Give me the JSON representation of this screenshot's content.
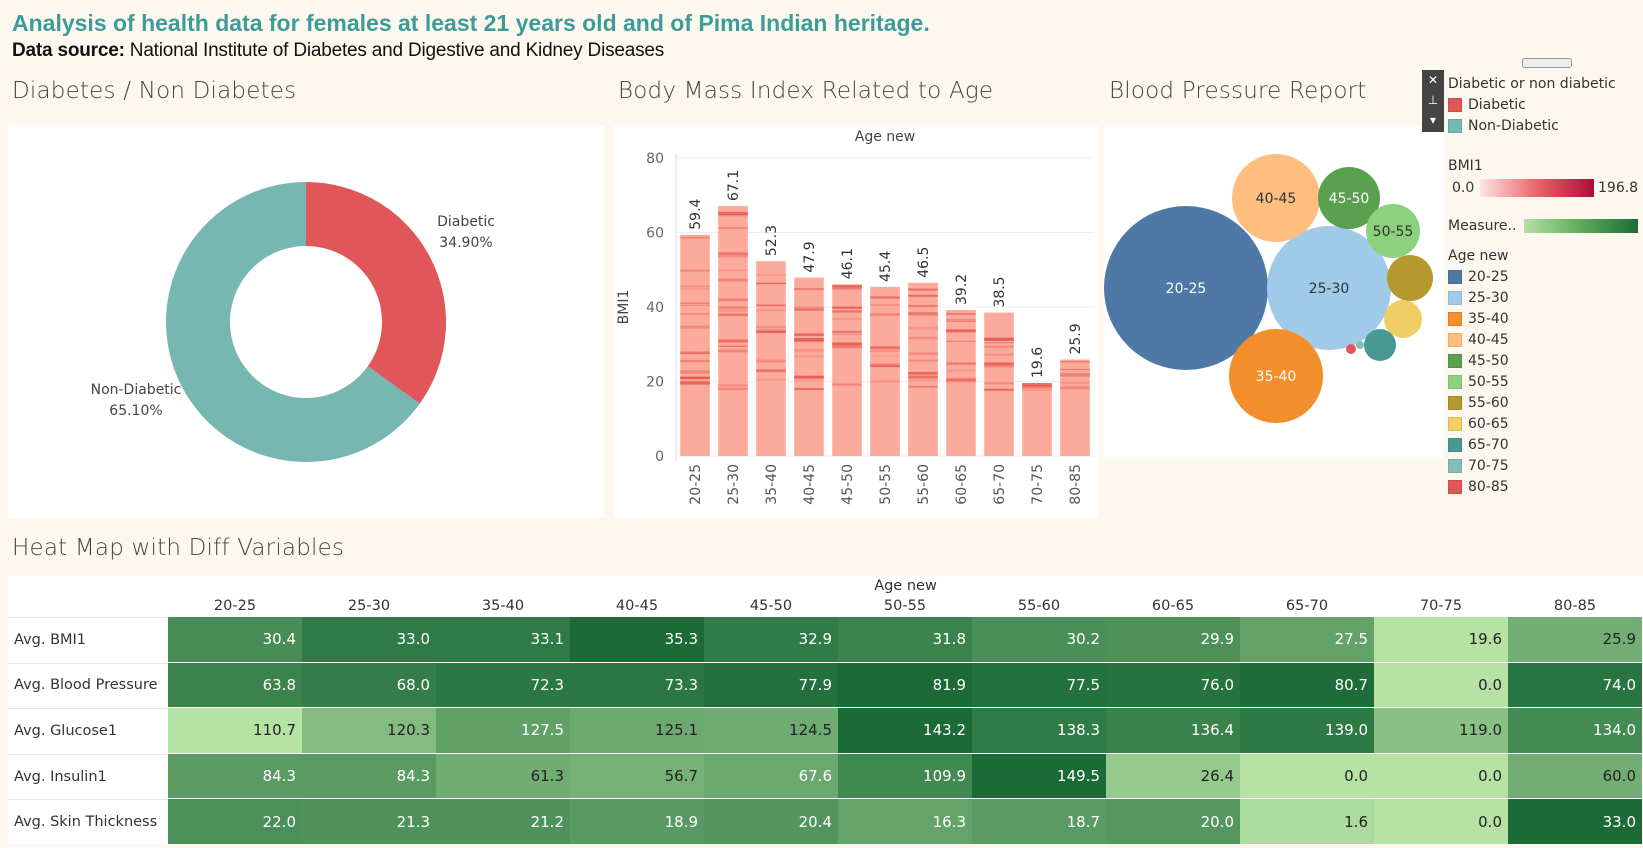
{
  "title": "Analysis of health data for females at least 21 years old and of Pima Indian heritage.",
  "source_label": "Data source:",
  "source_text": "National Institute of Diabetes and Digestive and Kidney Diseases",
  "sections": {
    "donut": "Diabetes / Non Diabetes",
    "bmi": "Body Mass Index Related to Age",
    "bp": "Blood Pressure Report",
    "heat": "Heat Map with Diff Variables"
  },
  "legend": {
    "diabetic_title": "Diabetic or non diabetic",
    "diabetic_items": [
      {
        "label": "Diabetic",
        "color": "#e15759"
      },
      {
        "label": "Non-Diabetic",
        "color": "#76b7b2"
      }
    ],
    "bmi_title": "BMI1",
    "bmi_min": "0.0",
    "bmi_max": "196.8",
    "measure_title": "Measure..",
    "age_title": "Age new",
    "age_items": [
      {
        "label": "20-25",
        "color": "#4e79a7"
      },
      {
        "label": "25-30",
        "color": "#a0cbe8"
      },
      {
        "label": "35-40",
        "color": "#f28e2b"
      },
      {
        "label": "40-45",
        "color": "#ffbe7d"
      },
      {
        "label": "45-50",
        "color": "#59a14f"
      },
      {
        "label": "50-55",
        "color": "#8cd17d"
      },
      {
        "label": "55-60",
        "color": "#b6992d"
      },
      {
        "label": "60-65",
        "color": "#f1ce63"
      },
      {
        "label": "65-70",
        "color": "#499894"
      },
      {
        "label": "70-75",
        "color": "#86bcb6"
      },
      {
        "label": "80-85",
        "color": "#e15759"
      }
    ],
    "controls": [
      "✕",
      "⊥",
      "▾"
    ]
  },
  "chart_data": [
    {
      "type": "pie",
      "title": "Diabetes / Non Diabetes",
      "categories": [
        "Diabetic",
        "Non-Diabetic"
      ],
      "values": [
        34.9,
        65.1
      ],
      "labels": [
        "34.90%",
        "65.10%"
      ],
      "colors": [
        "#e15759",
        "#76b7b2"
      ]
    },
    {
      "type": "bar",
      "title": "Body Mass Index Related to Age",
      "xlabel": "Age new",
      "ylabel": "BMI1",
      "ylim": [
        0,
        80
      ],
      "yticks": [
        0,
        20,
        40,
        60,
        80
      ],
      "categories": [
        "20-25",
        "25-30",
        "35-40",
        "40-45",
        "45-50",
        "50-55",
        "55-60",
        "60-65",
        "65-70",
        "70-75",
        "80-85"
      ],
      "values": [
        59.4,
        67.1,
        52.3,
        47.9,
        46.1,
        45.4,
        46.5,
        39.2,
        38.5,
        19.6,
        25.9
      ],
      "value_labels": [
        "59.4",
        "67.1",
        "52.3",
        "47.9",
        "46.1",
        "45.4",
        "46.5",
        "39.2",
        "38.5",
        "19.6",
        "25.9"
      ]
    },
    {
      "type": "scatter",
      "subtype": "packed-bubbles",
      "title": "Blood Pressure Report",
      "categories": [
        "20-25",
        "25-30",
        "35-40",
        "40-45",
        "45-50",
        "50-55",
        "55-60",
        "60-65",
        "65-70",
        "70-75",
        "80-85"
      ],
      "labeled": [
        "20-25",
        "25-30",
        "35-40",
        "40-45",
        "45-50",
        "50-55"
      ]
    },
    {
      "type": "heatmap",
      "title": "Heat Map with Diff Variables",
      "xlabel": "Age new",
      "columns": [
        "20-25",
        "25-30",
        "35-40",
        "40-45",
        "45-50",
        "50-55",
        "55-60",
        "60-65",
        "65-70",
        "70-75",
        "80-85"
      ],
      "rows": [
        {
          "name": "Avg. BMI1",
          "values": [
            "30.4",
            "33.0",
            "33.1",
            "35.3",
            "32.9",
            "31.8",
            "30.2",
            "29.9",
            "27.5",
            "19.6",
            "25.9"
          ]
        },
        {
          "name": "Avg. Blood Pressure",
          "values": [
            "63.8",
            "68.0",
            "72.3",
            "73.3",
            "77.9",
            "81.9",
            "77.5",
            "76.0",
            "80.7",
            "0.0",
            "74.0"
          ]
        },
        {
          "name": "Avg. Glucose1",
          "values": [
            "110.7",
            "120.3",
            "127.5",
            "125.1",
            "124.5",
            "143.2",
            "138.3",
            "136.4",
            "139.0",
            "119.0",
            "134.0"
          ]
        },
        {
          "name": "Avg. Insulin1",
          "values": [
            "84.3",
            "84.3",
            "61.3",
            "56.7",
            "67.6",
            "109.9",
            "149.5",
            "26.4",
            "0.0",
            "0.0",
            "60.0"
          ]
        },
        {
          "name": "Avg. Skin Thickness",
          "values": [
            "22.0",
            "21.3",
            "21.2",
            "18.9",
            "20.4",
            "16.3",
            "18.7",
            "20.0",
            "1.6",
            "0.0",
            "33.0"
          ]
        }
      ]
    }
  ]
}
